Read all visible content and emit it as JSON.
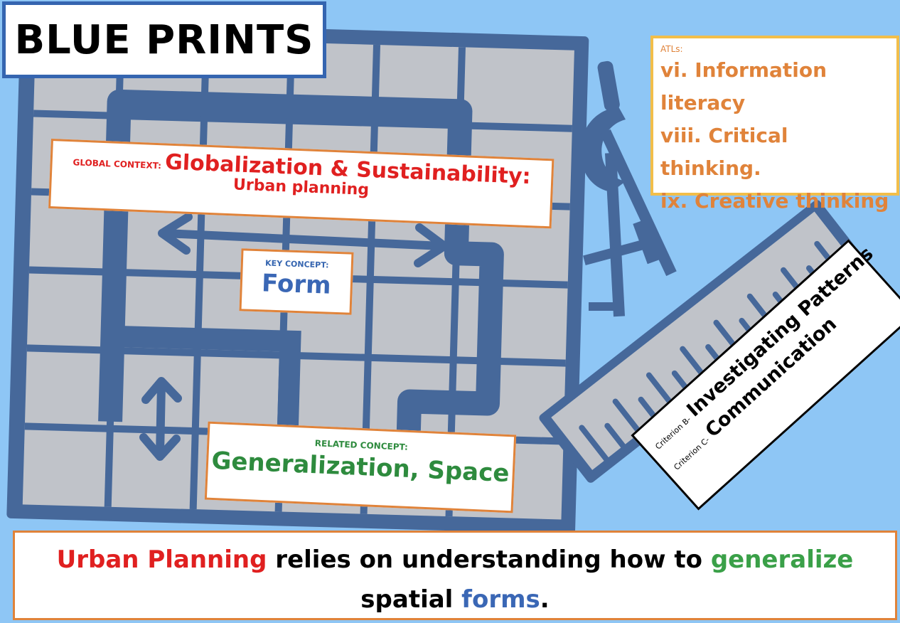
{
  "title": "BLUE PRINTS",
  "global_context": {
    "label": "GLOBAL CONTEXT:",
    "title": "Globalization & Sustainability:",
    "subtitle": "Urban planning"
  },
  "key_concept": {
    "label": "KEY CONCEPT:",
    "value": "Form"
  },
  "related_concept": {
    "label": "RELATED CONCEPT:",
    "value": "Generalization, Space"
  },
  "atls": {
    "label": "ATLs:",
    "lines": [
      "vi. Information",
      "literacy",
      "viii. Critical thinking.",
      "ix. Creative thinking"
    ]
  },
  "criteria": [
    {
      "label": "Criterion B-",
      "value": "Investigating Patterns"
    },
    {
      "label": "Criterion C-",
      "value": "Communication"
    }
  ],
  "statement": {
    "part1": "Urban Planning",
    "part2": " relies on understanding how to ",
    "part3": "generalize",
    "part4": " spatial ",
    "part5": "forms",
    "part6": "."
  },
  "colors": {
    "background": "#8ec6f5",
    "grid": "#46689a",
    "grid_fill": "#c0c3c9",
    "red": "#e02020",
    "green": "#3aa048",
    "blue": "#3a67b5",
    "orange": "#e0833a",
    "yellow": "#f2be4a"
  }
}
